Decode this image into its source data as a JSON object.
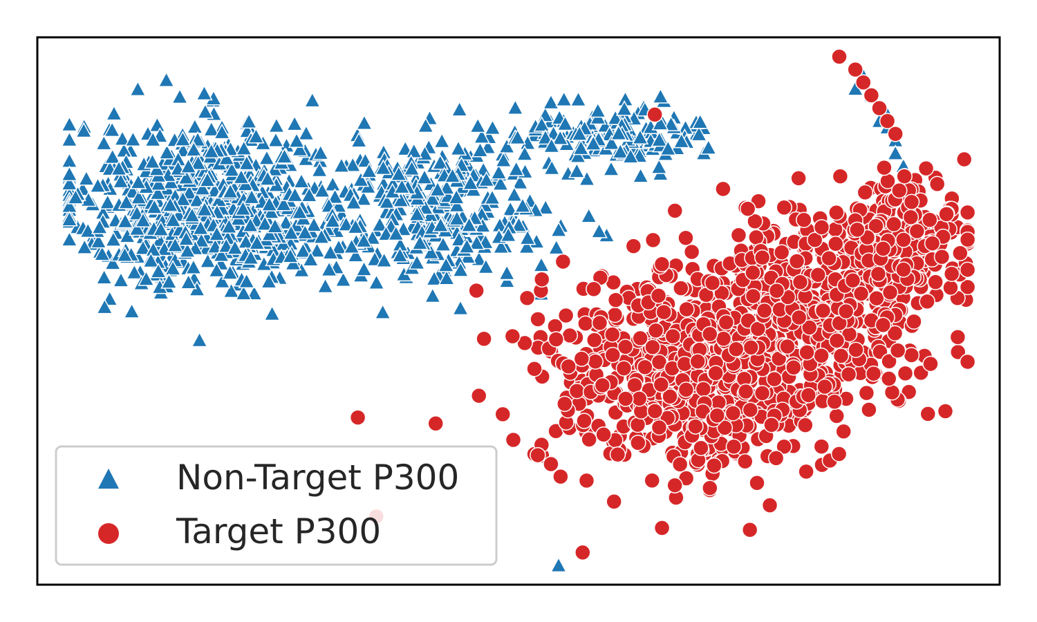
{
  "chart_data": {
    "type": "scatter",
    "title": "",
    "xlabel": "",
    "ylabel": "",
    "xlim": [
      -60,
      60
    ],
    "ylim": [
      -45,
      40
    ],
    "grid": false,
    "axis_ticks": false,
    "legend_position": "lower-left",
    "series": [
      {
        "name": "Non-Target P300",
        "marker": "triangle",
        "color": "#1f77b4",
        "n_points": 1200,
        "clusters": [
          {
            "cx": -38,
            "cy": 14,
            "sx": 11,
            "sy": 8,
            "weight": 0.62
          },
          {
            "cx": -10,
            "cy": 13,
            "sx": 9,
            "sy": 7,
            "weight": 0.26
          },
          {
            "cx": 12,
            "cy": 25,
            "sx": 7,
            "sy": 3,
            "weight": 0.12
          }
        ],
        "extra_points": [
          [
            43,
            34
          ],
          [
            44,
            31
          ],
          [
            46,
            28
          ],
          [
            47,
            24
          ],
          [
            48,
            20
          ],
          [
            45,
            27
          ],
          [
            47,
            22
          ],
          [
            5,
            -42
          ],
          [
            42,
            32
          ],
          [
            46,
            26
          ]
        ]
      },
      {
        "name": "Target P300",
        "marker": "circle",
        "color": "#d62728",
        "n_points": 1300,
        "clusters": [
          {
            "cx": 23,
            "cy": -12,
            "sx": 13,
            "sy": 10,
            "weight": 0.55
          },
          {
            "cx": 36,
            "cy": -2,
            "sx": 10,
            "sy": 9,
            "weight": 0.3
          },
          {
            "cx": 48,
            "cy": 10,
            "sx": 5,
            "sy": 5,
            "weight": 0.15
          }
        ],
        "extra_points": [
          [
            40,
            37
          ],
          [
            42,
            35
          ],
          [
            43,
            33
          ],
          [
            44,
            31
          ],
          [
            45,
            29
          ],
          [
            46,
            27
          ],
          [
            47,
            25
          ],
          [
            17,
            28
          ],
          [
            8,
            -40
          ],
          [
            52,
            2
          ]
        ]
      }
    ]
  },
  "legend": {
    "items": [
      {
        "label": "Non-Target P300",
        "color": "#1f77b4",
        "marker": "triangle"
      },
      {
        "label": "Target P300",
        "color": "#d62728",
        "marker": "circle"
      }
    ]
  }
}
